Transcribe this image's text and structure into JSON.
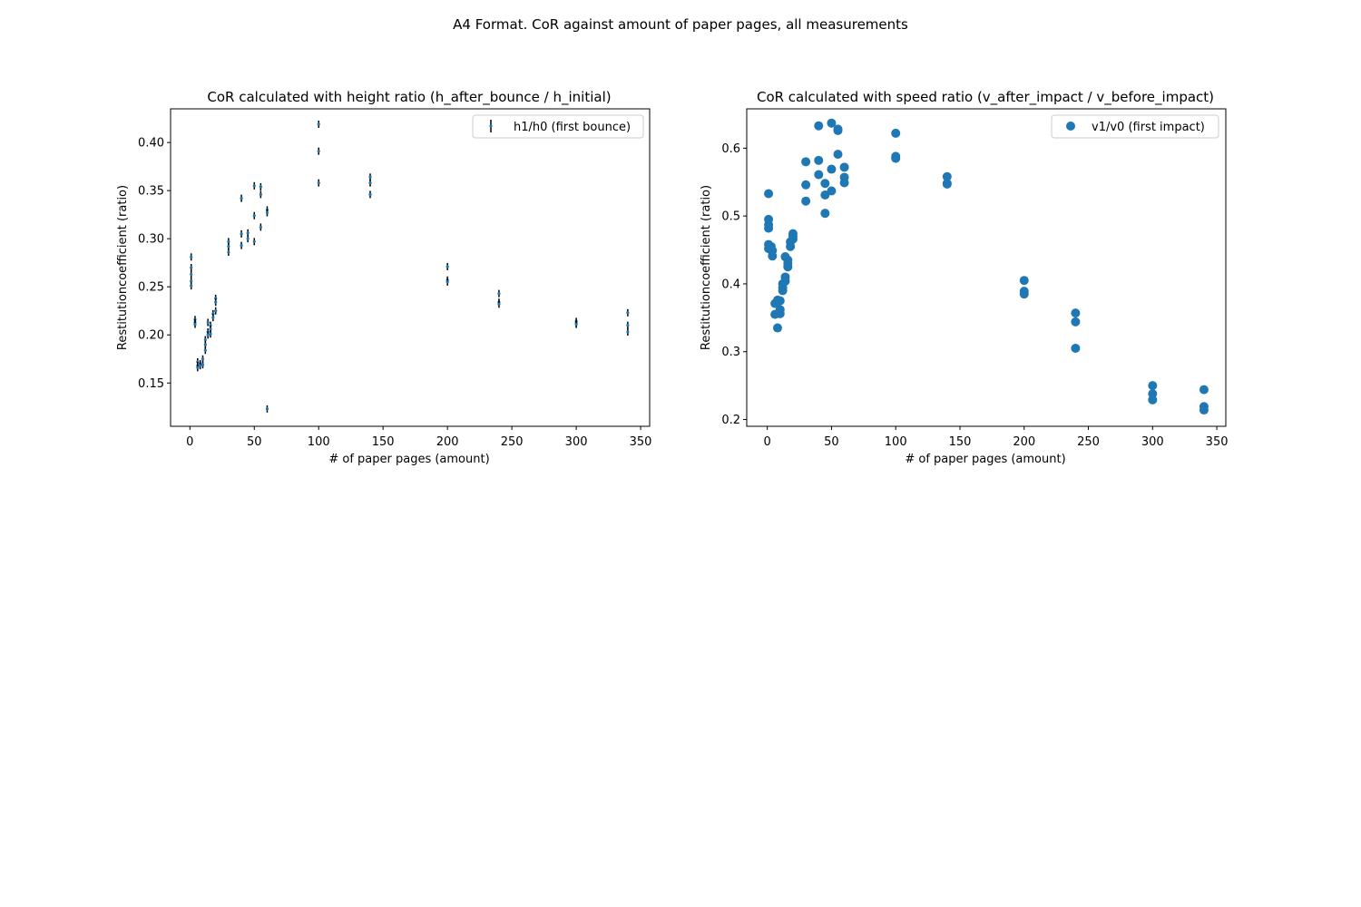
{
  "suptitle": "A4 Format. CoR against amount of paper pages, all measurements",
  "marker_color": "#1f77b4",
  "chart_data": [
    {
      "type": "scatter",
      "title": "CoR calculated with height ratio (h_after_bounce / h_initial)",
      "xlabel": "# of paper pages (amount)",
      "ylabel": "Restitutioncoefficient (ratio)",
      "xlim": [
        -15,
        357
      ],
      "ylim": [
        0.105,
        0.435
      ],
      "xticks": [
        0,
        50,
        100,
        150,
        200,
        250,
        300,
        350
      ],
      "yticks": [
        0.15,
        0.2,
        0.25,
        0.3,
        0.35,
        0.4
      ],
      "legend_position": "top-right",
      "error_bars": true,
      "series": [
        {
          "name": "h1/h0 (first bounce)",
          "points": [
            [
              1,
              0.281
            ],
            [
              1,
              0.27
            ],
            [
              1,
              0.263
            ],
            [
              1,
              0.256
            ],
            [
              1,
              0.251
            ],
            [
              4,
              0.216
            ],
            [
              4,
              0.213
            ],
            [
              4,
              0.211
            ],
            [
              6,
              0.172
            ],
            [
              6,
              0.168
            ],
            [
              6,
              0.166
            ],
            [
              8,
              0.17
            ],
            [
              8,
              0.168
            ],
            [
              10,
              0.175
            ],
            [
              10,
              0.169
            ],
            [
              12,
              0.195
            ],
            [
              12,
              0.19
            ],
            [
              12,
              0.184
            ],
            [
              14,
              0.213
            ],
            [
              14,
              0.203
            ],
            [
              14,
              0.2
            ],
            [
              16,
              0.21
            ],
            [
              16,
              0.206
            ],
            [
              16,
              0.201
            ],
            [
              18,
              0.222
            ],
            [
              18,
              0.218
            ],
            [
              20,
              0.238
            ],
            [
              20,
              0.234
            ],
            [
              20,
              0.225
            ],
            [
              30,
              0.297
            ],
            [
              30,
              0.292
            ],
            [
              30,
              0.286
            ],
            [
              40,
              0.342
            ],
            [
              40,
              0.305
            ],
            [
              40,
              0.293
            ],
            [
              45,
              0.306
            ],
            [
              45,
              0.3
            ],
            [
              50,
              0.355
            ],
            [
              50,
              0.324
            ],
            [
              50,
              0.297
            ],
            [
              55,
              0.354
            ],
            [
              55,
              0.346
            ],
            [
              55,
              0.312
            ],
            [
              60,
              0.33
            ],
            [
              60,
              0.327
            ],
            [
              60,
              0.123
            ],
            [
              100,
              0.419
            ],
            [
              100,
              0.391
            ],
            [
              100,
              0.358
            ],
            [
              140,
              0.364
            ],
            [
              140,
              0.358
            ],
            [
              140,
              0.346
            ],
            [
              200,
              0.271
            ],
            [
              200,
              0.257
            ],
            [
              200,
              0.255
            ],
            [
              240,
              0.243
            ],
            [
              240,
              0.234
            ],
            [
              240,
              0.232
            ],
            [
              300,
              0.214
            ],
            [
              300,
              0.212
            ],
            [
              300,
              0.211
            ],
            [
              340,
              0.223
            ],
            [
              340,
              0.21
            ],
            [
              340,
              0.203
            ]
          ]
        }
      ]
    },
    {
      "type": "scatter",
      "title": "CoR calculated with speed ratio (v_after_impact / v_before_impact)",
      "xlabel": "# of paper pages (amount)",
      "ylabel": "Restitutioncoefficient (ratio)",
      "xlim": [
        -16,
        357
      ],
      "ylim": [
        0.19,
        0.658
      ],
      "xticks": [
        0,
        50,
        100,
        150,
        200,
        250,
        300,
        350
      ],
      "yticks": [
        0.2,
        0.3,
        0.4,
        0.5,
        0.6
      ],
      "legend_position": "top-right",
      "series": [
        {
          "name": "v1/v0 (first impact)",
          "points": [
            [
              1,
              0.533
            ],
            [
              1,
              0.495
            ],
            [
              1,
              0.487
            ],
            [
              1,
              0.482
            ],
            [
              1,
              0.458
            ],
            [
              1,
              0.452
            ],
            [
              3,
              0.455
            ],
            [
              3,
              0.45
            ],
            [
              4,
              0.449
            ],
            [
              4,
              0.441
            ],
            [
              6,
              0.371
            ],
            [
              6,
              0.355
            ],
            [
              8,
              0.376
            ],
            [
              8,
              0.335
            ],
            [
              10,
              0.375
            ],
            [
              10,
              0.362
            ],
            [
              10,
              0.356
            ],
            [
              12,
              0.4
            ],
            [
              12,
              0.394
            ],
            [
              12,
              0.39
            ],
            [
              14,
              0.44
            ],
            [
              14,
              0.41
            ],
            [
              14,
              0.404
            ],
            [
              16,
              0.435
            ],
            [
              16,
              0.43
            ],
            [
              16,
              0.425
            ],
            [
              18,
              0.462
            ],
            [
              18,
              0.455
            ],
            [
              20,
              0.474
            ],
            [
              20,
              0.47
            ],
            [
              20,
              0.466
            ],
            [
              30,
              0.58
            ],
            [
              30,
              0.546
            ],
            [
              30,
              0.522
            ],
            [
              40,
              0.633
            ],
            [
              40,
              0.582
            ],
            [
              40,
              0.561
            ],
            [
              45,
              0.548
            ],
            [
              45,
              0.531
            ],
            [
              45,
              0.504
            ],
            [
              50,
              0.637
            ],
            [
              50,
              0.569
            ],
            [
              50,
              0.537
            ],
            [
              55,
              0.628
            ],
            [
              55,
              0.626
            ],
            [
              55,
              0.591
            ],
            [
              60,
              0.572
            ],
            [
              60,
              0.557
            ],
            [
              60,
              0.549
            ],
            [
              100,
              0.622
            ],
            [
              100,
              0.588
            ],
            [
              100,
              0.585
            ],
            [
              140,
              0.558
            ],
            [
              140,
              0.548
            ],
            [
              140,
              0.547
            ],
            [
              200,
              0.405
            ],
            [
              200,
              0.389
            ],
            [
              200,
              0.385
            ],
            [
              240,
              0.357
            ],
            [
              240,
              0.344
            ],
            [
              240,
              0.305
            ],
            [
              300,
              0.25
            ],
            [
              300,
              0.238
            ],
            [
              300,
              0.229
            ],
            [
              340,
              0.244
            ],
            [
              340,
              0.219
            ],
            [
              340,
              0.214
            ]
          ]
        }
      ]
    }
  ]
}
